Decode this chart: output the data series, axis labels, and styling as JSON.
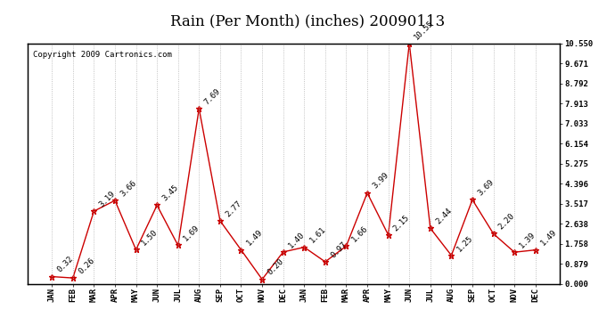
{
  "title": "Rain (Per Month) (inches) 20090113",
  "copyright_text": "Copyright 2009 Cartronics.com",
  "months": [
    "JAN",
    "FEB",
    "MAR",
    "APR",
    "MAY",
    "JUN",
    "JUL",
    "AUG",
    "SEP",
    "OCT",
    "NOV",
    "DEC",
    "JAN",
    "FEB",
    "MAR",
    "APR",
    "MAY",
    "JUN",
    "JUL",
    "AUG",
    "SEP",
    "OCT",
    "NOV",
    "DEC"
  ],
  "values": [
    0.32,
    0.26,
    3.19,
    3.66,
    1.5,
    3.45,
    1.69,
    7.69,
    2.77,
    1.49,
    0.2,
    1.4,
    1.61,
    0.97,
    1.66,
    3.99,
    2.15,
    10.55,
    2.44,
    1.25,
    3.69,
    2.2,
    1.39,
    1.49
  ],
  "ylim": [
    0,
    10.55
  ],
  "yticks": [
    0.0,
    0.879,
    1.758,
    2.638,
    3.517,
    4.396,
    5.275,
    6.154,
    7.033,
    7.913,
    8.792,
    9.671,
    10.55
  ],
  "line_color": "#cc0000",
  "marker_color": "#cc0000",
  "bg_color": "#ffffff",
  "grid_color": "#b0b0b0",
  "title_fontsize": 12,
  "label_fontsize": 6.5,
  "annotation_fontsize": 6.5,
  "copyright_fontsize": 6.5
}
